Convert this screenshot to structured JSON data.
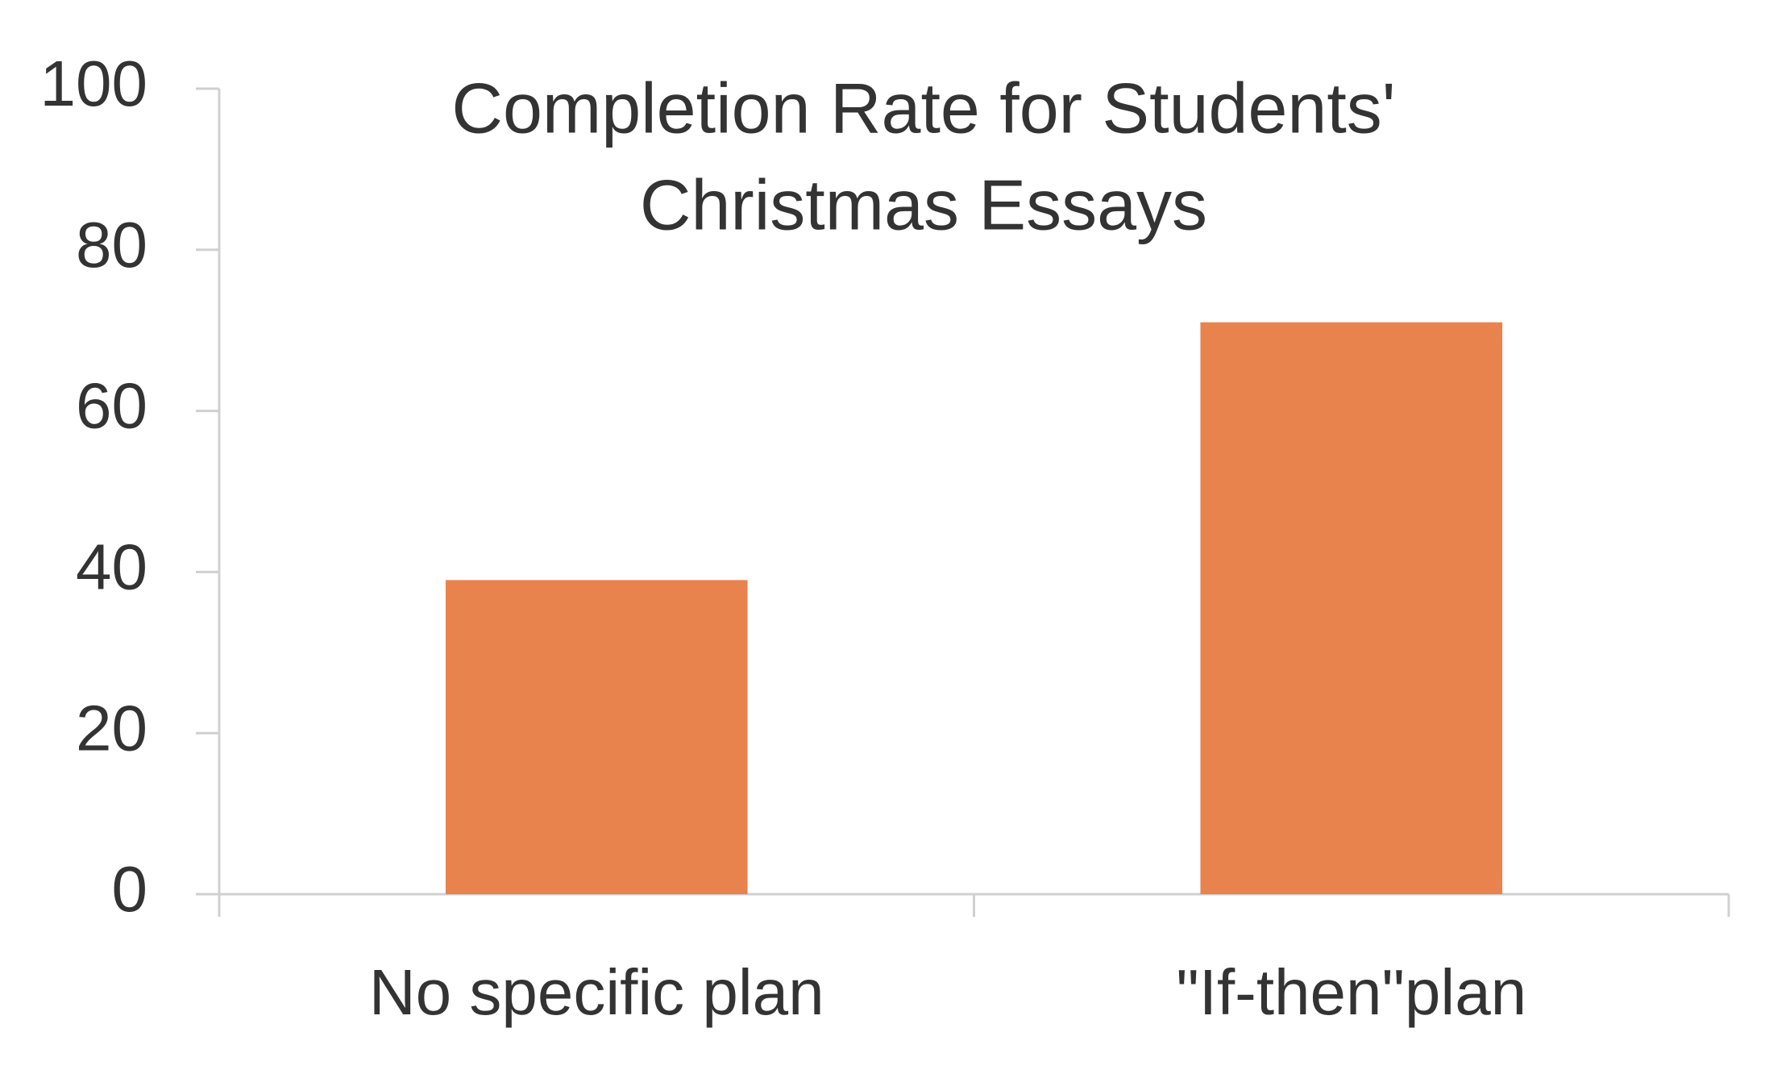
{
  "chart_data": {
    "type": "bar",
    "title": [
      "Completion Rate for Students'",
      "Christmas Essays"
    ],
    "categories": [
      "No specific plan",
      "\"If-then\"plan"
    ],
    "values": [
      39,
      71
    ],
    "color": "#e8834e",
    "ylim": [
      0,
      100
    ],
    "yticks": [
      0,
      20,
      40,
      60,
      80,
      100
    ],
    "grid": false
  }
}
